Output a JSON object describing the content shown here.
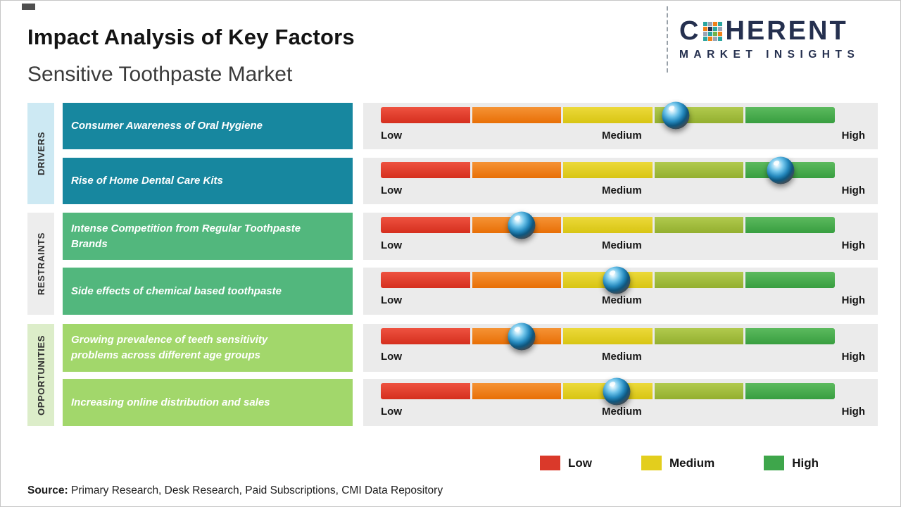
{
  "header": {
    "title": "Impact Analysis of Key Factors",
    "subtitle": "Sensitive Toothpaste Market"
  },
  "logo": {
    "brand": "COHERENT",
    "brand_left": "C",
    "brand_right": "HERENT",
    "tagline": "MARKET INSIGHTS"
  },
  "scale": {
    "low": "Low",
    "medium": "Medium",
    "high": "High"
  },
  "groups": [
    {
      "label": "DRIVERS",
      "box_color": "#17879f",
      "rail_color": "#cde9f3"
    },
    {
      "label": "RESTRAINTS",
      "box_color": "#52b77d",
      "rail_color": "#ededed"
    },
    {
      "label": "OPPORTUNITIES",
      "box_color": "#a2d76b",
      "rail_color": "#dcedc9"
    }
  ],
  "legend": [
    {
      "label": "Low",
      "color": "#da392a"
    },
    {
      "label": "Medium",
      "color": "#e3ce1d"
    },
    {
      "label": "High",
      "color": "#3ea64b"
    }
  ],
  "source": {
    "label": "Source:",
    "text": "Primary Research, Desk Research, Paid Subscriptions, CMI Data Repository"
  },
  "chart_data": {
    "type": "bar",
    "title": "Impact Analysis of Key Factors",
    "subtitle": "Sensitive Toothpaste Market",
    "x_scale": {
      "labels": [
        "Low",
        "Medium",
        "High"
      ],
      "range_pct": [
        0,
        100
      ]
    },
    "bar_gradient_colors": [
      "#e23a2a",
      "#f07f15",
      "#e2cf1e",
      "#a3bf3a",
      "#46ab4b"
    ],
    "legend_entries": [
      "Low",
      "Medium",
      "High"
    ],
    "series": [
      {
        "group": "DRIVERS",
        "factor": "Consumer Awareness of Oral Hygiene",
        "impact_pct": 65,
        "impact_level": "Medium-High"
      },
      {
        "group": "DRIVERS",
        "factor": "Rise of Home Dental Care Kits",
        "impact_pct": 88,
        "impact_level": "High"
      },
      {
        "group": "RESTRAINTS",
        "factor": "Intense Competition from Regular Toothpaste Brands",
        "impact_pct": 31,
        "impact_level": "Low-Medium"
      },
      {
        "group": "RESTRAINTS",
        "factor": "Side effects of chemical based toothpaste",
        "impact_pct": 52,
        "impact_level": "Medium"
      },
      {
        "group": "OPPORTUNITIES",
        "factor": "Growing prevalence of teeth sensitivity problems across different age groups",
        "impact_pct": 31,
        "impact_level": "Low-Medium"
      },
      {
        "group": "OPPORTUNITIES",
        "factor": "Increasing online distribution and sales",
        "impact_pct": 52,
        "impact_level": "Medium"
      }
    ]
  }
}
